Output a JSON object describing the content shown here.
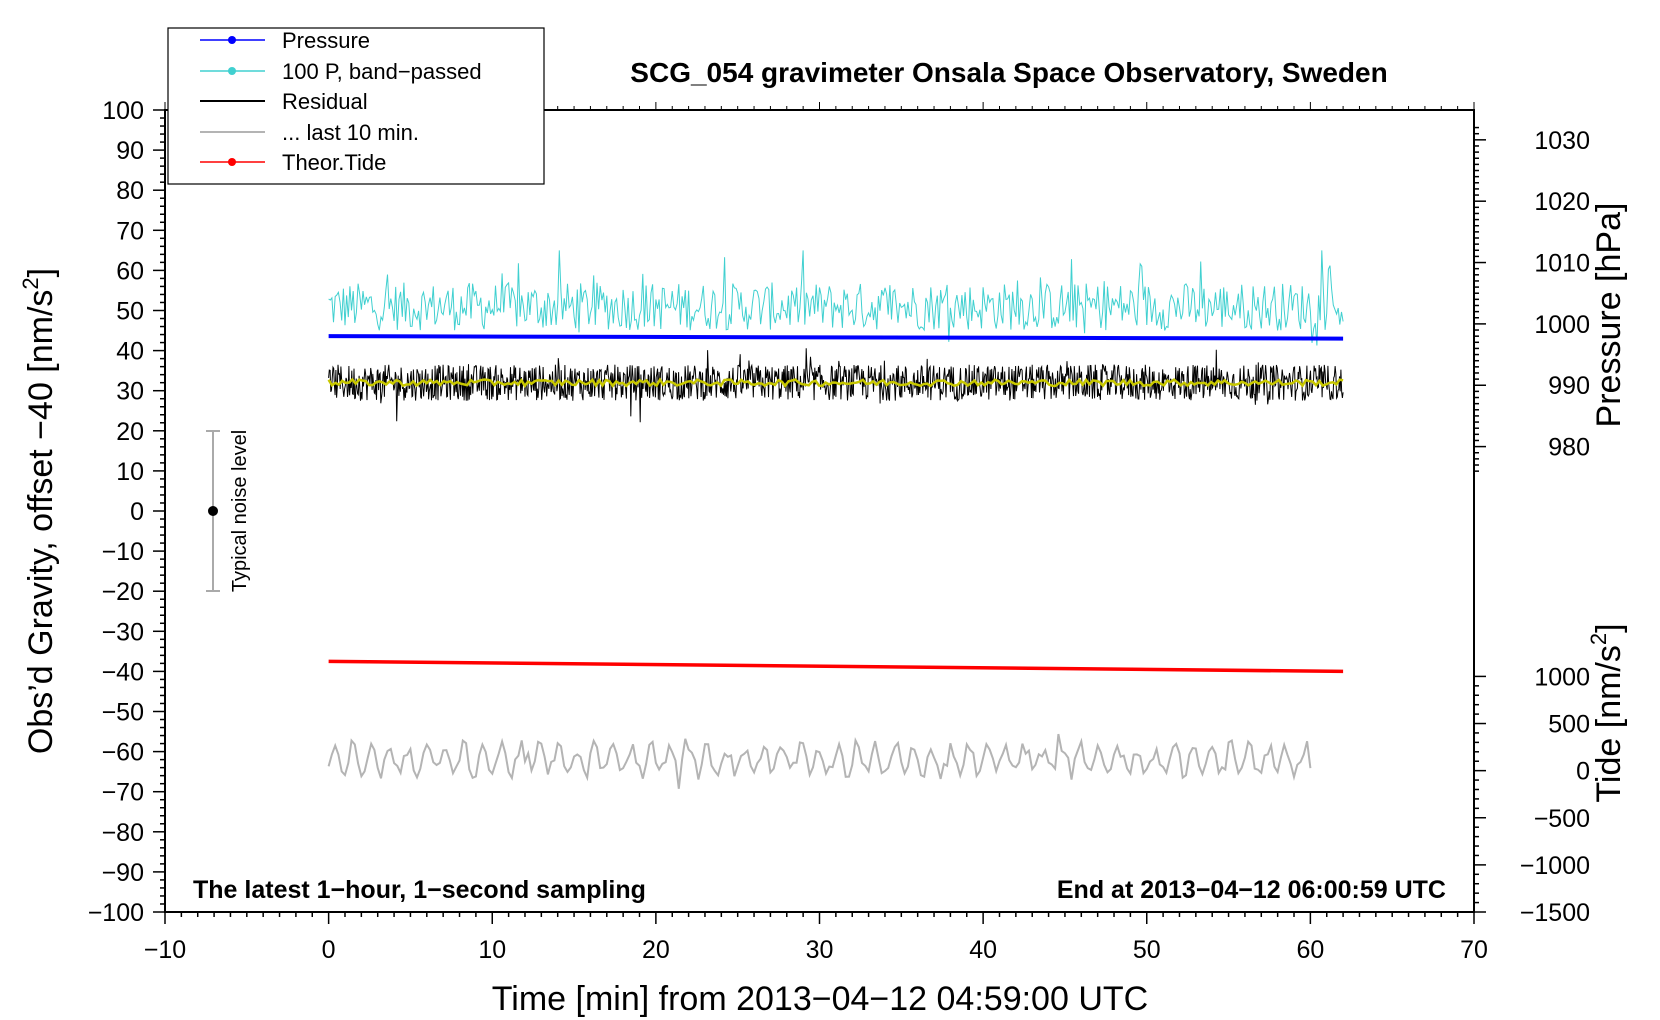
{
  "chart_data": {
    "type": "line",
    "title": "SCG_054 gravimeter Onsala Space Observatory, Sweden",
    "xlabel": "Time [min] from 2013−04−12 04:59:00 UTC",
    "xlim": [
      -10,
      70
    ],
    "xticks": [
      -10,
      0,
      10,
      20,
      30,
      40,
      50,
      60,
      70
    ],
    "xtick_labels": [
      "−10",
      "0",
      "10",
      "20",
      "30",
      "40",
      "50",
      "60",
      "70"
    ],
    "left_axis": {
      "label_main": "Obs’d Gravity, offset −40 [nm/s",
      "label_sup": "2",
      "label_end": "]",
      "ylim": [
        -100,
        100
      ],
      "ticks": [
        100,
        90,
        80,
        70,
        60,
        50,
        40,
        30,
        20,
        10,
        0,
        -10,
        -20,
        -30,
        -40,
        -50,
        -60,
        -70,
        -80,
        -90,
        -100
      ],
      "tick_labels": [
        "100",
        "90",
        "80",
        "70",
        "60",
        "50",
        "40",
        "30",
        "20",
        "10",
        "0",
        "−10",
        "−20",
        "−30",
        "−40",
        "−50",
        "−60",
        "−70",
        "−80",
        "−90",
        "−100"
      ]
    },
    "pressure_axis": {
      "label": "Pressure [hPa]",
      "ticks": [
        1030,
        1020,
        1010,
        1000,
        990,
        980
      ],
      "tick_labels": [
        "1030",
        "1020",
        "1010",
        "1000",
        "990",
        "980"
      ]
    },
    "tide_axis": {
      "label_main": "Tide [nm/s",
      "label_sup": "2",
      "label_end": "]",
      "ticks": [
        1000,
        500,
        0,
        -500,
        -1000,
        -1500
      ],
      "tick_labels": [
        "1000",
        "500",
        "0",
        "−500",
        "−1000",
        "−1500"
      ]
    },
    "series": [
      {
        "name": "Pressure",
        "color": "#0000ff",
        "style": "thick line",
        "x": [
          0,
          62
        ],
        "values": [
          43.6,
          43.0
        ]
      },
      {
        "name": "100 P, band−passed",
        "color": "#40d0d0",
        "style": "thin noisy line",
        "x_range": [
          0,
          62
        ],
        "mean": 51,
        "range": [
          38,
          65
        ]
      },
      {
        "name": "Residual",
        "color": "#000000",
        "style": "thin noisy line",
        "x_range": [
          0,
          62
        ],
        "mean": 32,
        "range": [
          22,
          41
        ]
      },
      {
        "name": "... last 10 min.",
        "color": "#b4b4b4",
        "style": "thin oscillating line",
        "x_range": [
          0,
          60
        ],
        "mean": -62,
        "range": [
          -70,
          -55
        ]
      },
      {
        "name": "Theor.Tide",
        "color": "#ff0000",
        "style": "thick line",
        "x": [
          0,
          62
        ],
        "values": [
          -37.5,
          -40.0
        ]
      }
    ],
    "smoothed_residual_color": "#c8c800",
    "noise_bar": {
      "label": "Typical noise level",
      "x": -7,
      "center": 0,
      "range": [
        -20,
        20
      ]
    },
    "note_left": "The latest 1−hour, 1−second sampling",
    "note_right": "End at 2013−04−12 06:00:59 UTC",
    "legend": {
      "position": "top-left",
      "entries": [
        {
          "label": "Pressure",
          "color": "#0000ff",
          "marker": "dot"
        },
        {
          "label": "100 P, band−passed",
          "color": "#40d0d0",
          "marker": "dot"
        },
        {
          "label": "Residual",
          "color": "#000000",
          "marker": "none"
        },
        {
          "label": "... last 10 min.",
          "color": "#b4b4b4",
          "marker": "none"
        },
        {
          "label": "Theor.Tide",
          "color": "#ff0000",
          "marker": "dot"
        }
      ]
    }
  }
}
